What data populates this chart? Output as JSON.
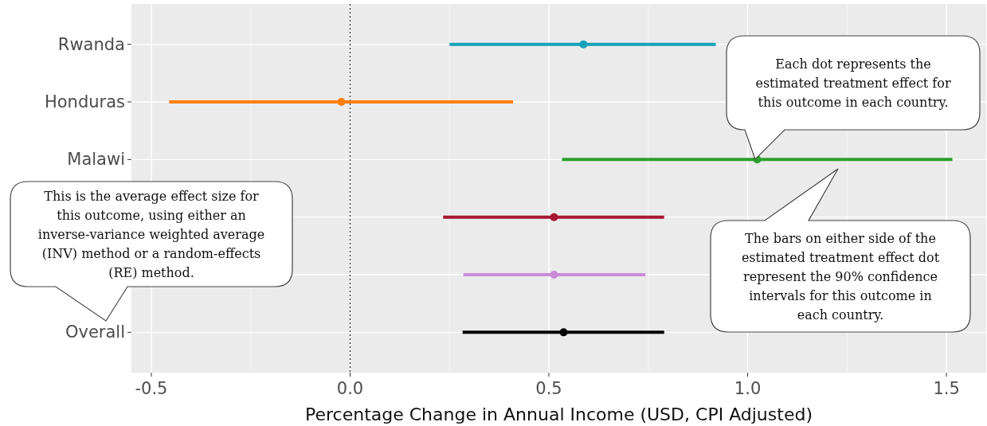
{
  "chart_data": {
    "type": "scatter",
    "orientation": "horizontal",
    "categories": [
      "Rwanda",
      "Honduras",
      "Malawi",
      null,
      null,
      "Overall"
    ],
    "values": [
      0.587,
      -0.022,
      1.024,
      0.513,
      0.513,
      0.537
    ],
    "errors": [
      [
        0.25,
        0.92
      ],
      [
        -0.455,
        0.41
      ],
      [
        0.533,
        1.515
      ],
      [
        0.234,
        0.79
      ],
      [
        0.285,
        0.743
      ],
      [
        0.283,
        0.79
      ]
    ],
    "colors": [
      "#17a2b8",
      "#ff7f0e",
      "#2ca02c",
      "#a6172f",
      "#c98bdb",
      "#000000"
    ],
    "xlim": [
      -0.55,
      1.6
    ],
    "xticks": [
      {
        "value": -0.5,
        "label": "-0.5"
      },
      {
        "value": 0,
        "label": "0.0"
      },
      {
        "value": 0.5,
        "label": "0.5"
      },
      {
        "value": 1,
        "label": "1.0"
      },
      {
        "value": 1.5,
        "label": "1.5"
      }
    ],
    "xlabel": "Percentage Change in Annual Income (USD, CPI Adjusted)",
    "grid": true,
    "marker": "circle",
    "ref_lines": [
      {
        "axis": "x",
        "value": 0,
        "line_style": "dotted",
        "color": "#333333"
      }
    ],
    "annotations": [
      "Each dot represents the estimated treatment effect for this outcome in each country.",
      "The bars on either side of the estimated treatment effect dot represent the 90% confidence intervals for this outcome in each country.",
      "This is the average effect size for this outcome, using either an inverse-variance weighted average (INV) method or a random-effects (RE) method."
    ]
  }
}
